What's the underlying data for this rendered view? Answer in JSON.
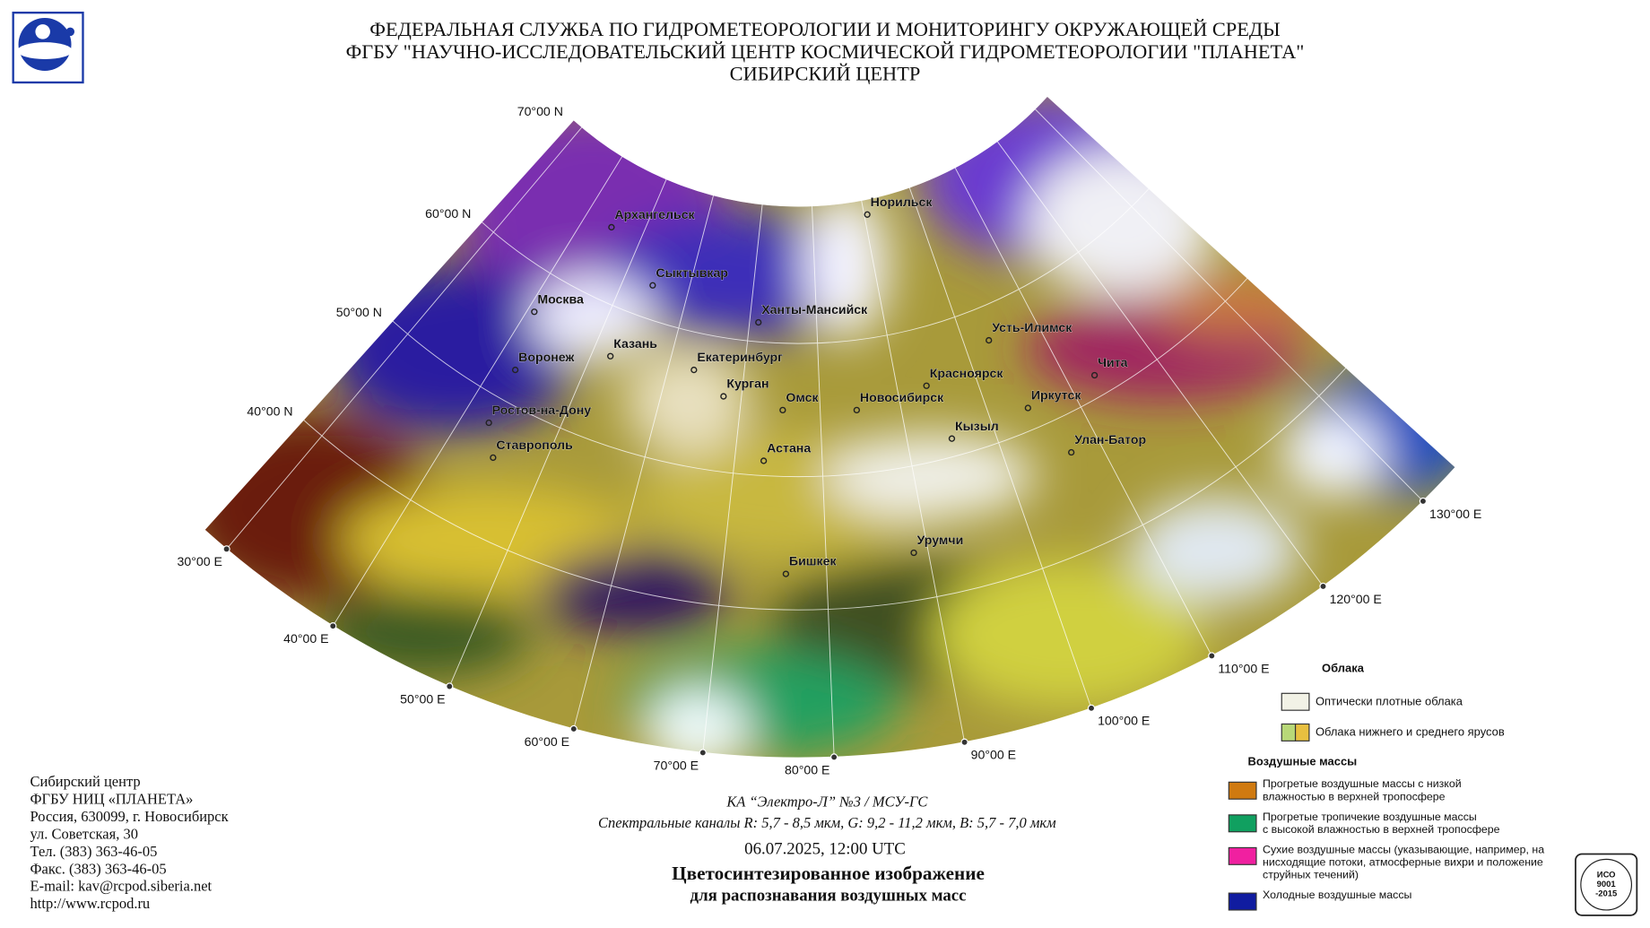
{
  "header": {
    "lines": [
      "ФЕДЕРАЛЬНАЯ СЛУЖБА ПО ГИДРОМЕТЕОРОЛОГИИ И МОНИТОРИНГУ ОКРУЖАЮЩЕЙ СРЕДЫ",
      "ФГБУ \"НАУЧНО-ИССЛЕДОВАТЕЛЬСКИЙ ЦЕНТР КОСМИЧЕСКОЙ ГИДРОМЕТЕОРОЛОГИИ \"ПЛАНЕТА\"",
      "СИБИРСКИЙ ЦЕНТР"
    ]
  },
  "map": {
    "cities": [
      "Архангельск",
      "Норильск",
      "Сыктывкар",
      "Москва",
      "Ханты-Мансийск",
      "Казань",
      "Усть-Илимск",
      "Воронеж",
      "Екатеринбург",
      "Красноярск",
      "Чита",
      "Курган",
      "Омск",
      "Новосибирск",
      "Иркутск",
      "Ростов-на-Дону",
      "Кызыл",
      "Ставрополь",
      "Улан-Батор",
      "Астана",
      "Урумчи",
      "Бишкек"
    ],
    "lat_labels": [
      "70°00 N",
      "60°00 N",
      "50°00 N",
      "40°00 N"
    ],
    "lon_labels": [
      "30°00 E",
      "40°00 E",
      "50°00 E",
      "60°00 E",
      "70°00 E",
      "80°00 E",
      "90°00 E",
      "100°00 E",
      "110°00 E",
      "120°00 E",
      "130°00 E"
    ]
  },
  "legend": {
    "clouds": {
      "title": "Облака",
      "items": [
        [
          "Оптически плотные облака"
        ],
        [
          "Облака нижнего и среднего ярусов"
        ]
      ]
    },
    "air_masses": {
      "title": "Воздушные массы",
      "items": [
        [
          "Прогретые воздушные массы с низкой",
          "влажностью в верхней тропосфере"
        ],
        [
          "Прогретые тропичекие воздушные массы",
          "с высокой влажностью в верхней тропосфере"
        ],
        [
          "Сухие воздушные массы (указывающие, например, на",
          "нисходящие потоки, атмосферные вихри и положение",
          "струйных течений)"
        ],
        [
          "Холодные воздушные массы"
        ]
      ]
    }
  },
  "caption": {
    "satellite": "КА “Электро-Л” №3 / МСУ-ГС",
    "channels": "Спектральные каналы R: 5,7 - 8,5 мкм, G: 9,2 - 11,2 мкм, B: 5,7 - 7,0 мкм",
    "datetime": "06.07.2025, 12:00 UTC",
    "title_lines": [
      "Цветосинтезированное изображение",
      "для распознавания воздушных масс"
    ]
  },
  "footer": {
    "address": [
      "Сибирский центр",
      "ФГБУ НИЦ «ПЛАНЕТА»",
      "Россия, 630099, г. Новосибирск",
      "ул. Советская, 30",
      "Тел. (383) 363-46-05",
      "Факс. (383) 363-46-05",
      "E-mail: kav@rcpod.siberia.net",
      "http://www.rcpod.ru"
    ]
  },
  "iso": {
    "lines": [
      "ИСО",
      "9001",
      "-2015"
    ]
  }
}
